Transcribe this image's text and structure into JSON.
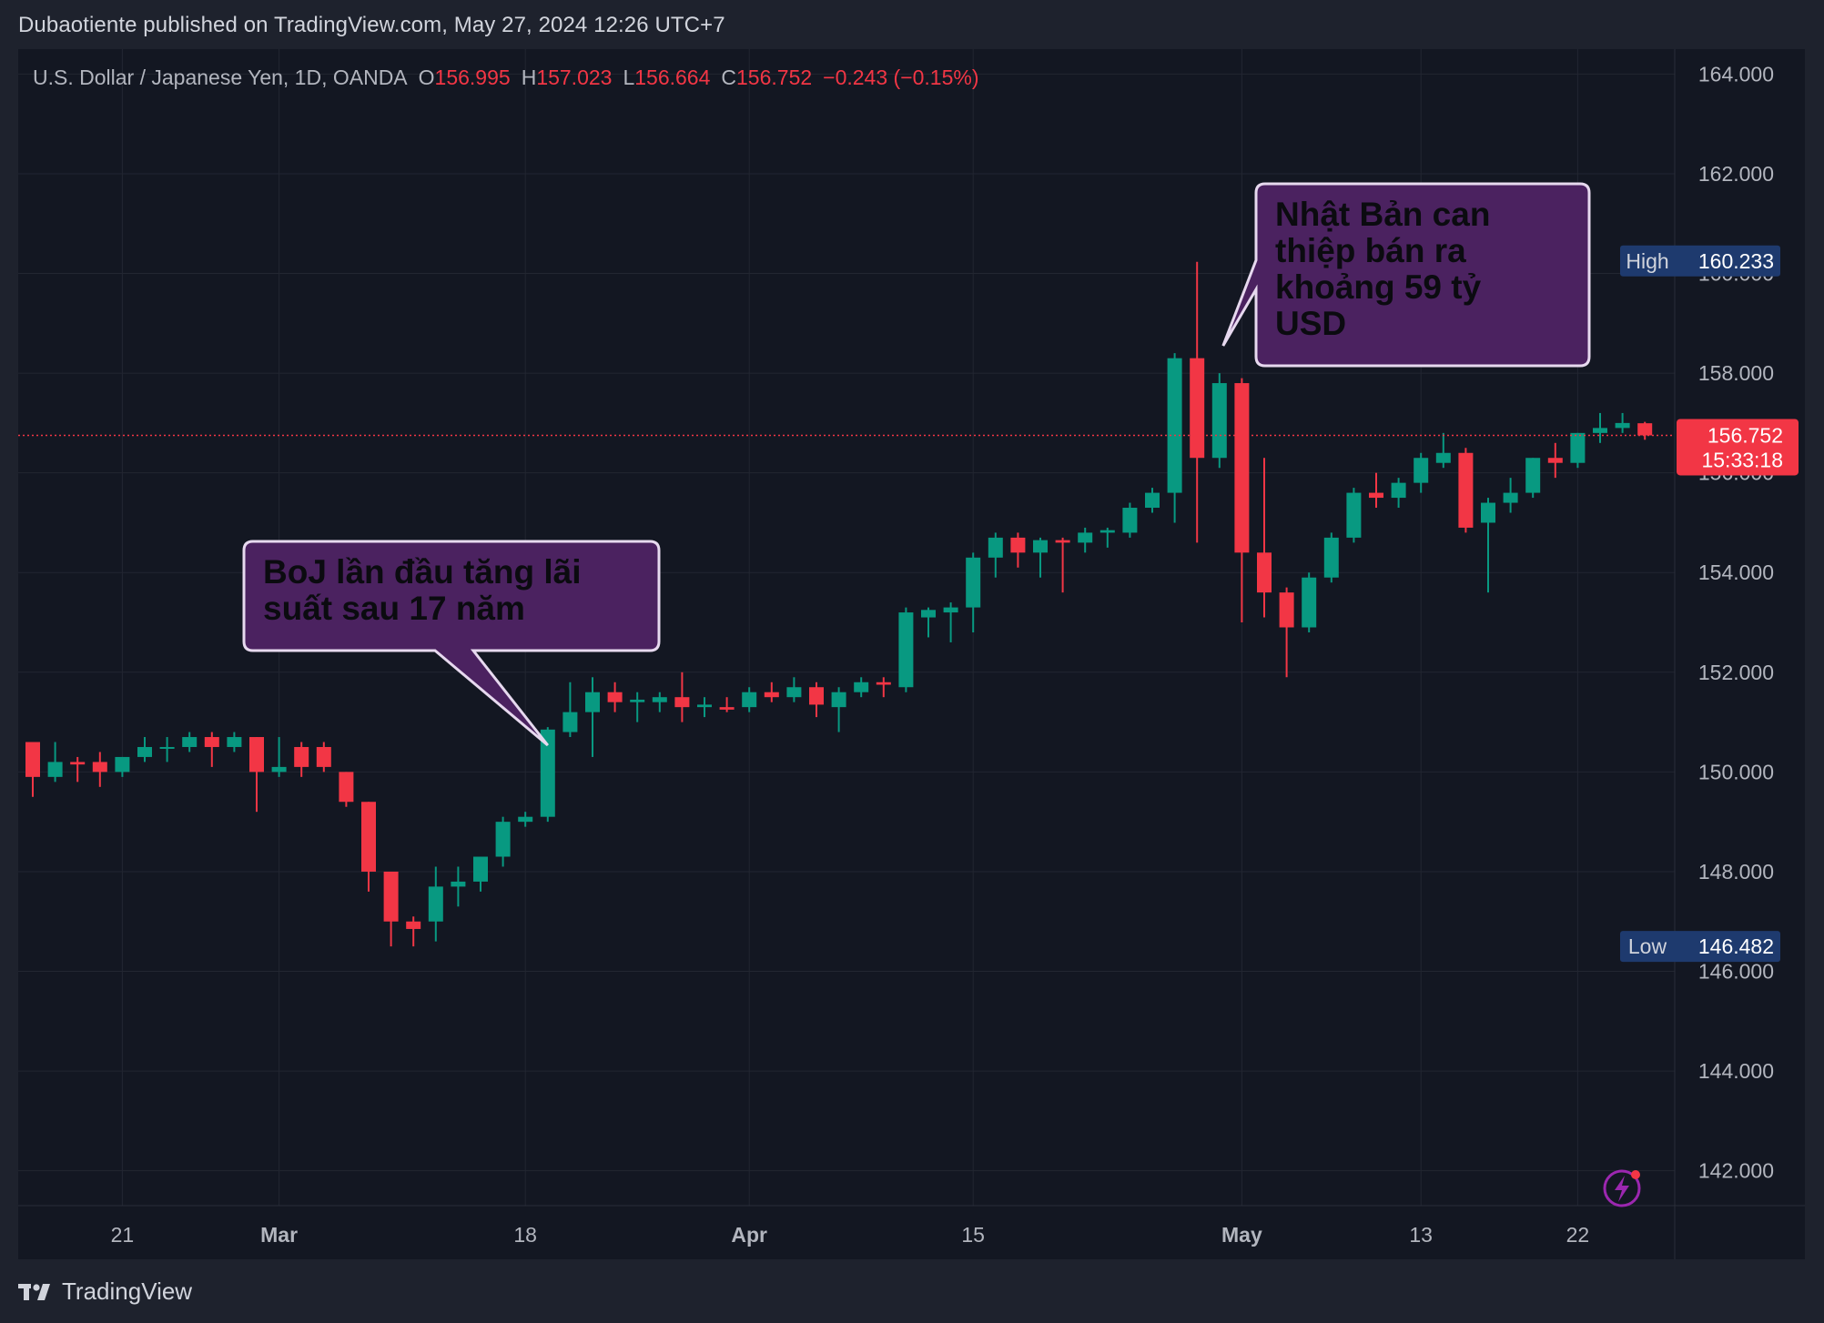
{
  "header": {
    "published": "Dubaotiente published on TradingView.com, May 27, 2024 12:26 UTC+7"
  },
  "legend": {
    "symbol": "U.S. Dollar / Japanese Yen, 1D, OANDA",
    "o_label": "O",
    "o_value": "156.995",
    "h_label": "H",
    "h_value": "157.023",
    "l_label": "L",
    "l_value": "156.664",
    "c_label": "C",
    "c_value": "156.752",
    "change": "−0.243 (−0.15%)"
  },
  "footer": {
    "brand": "TradingView"
  },
  "colors": {
    "up": "#089981",
    "down": "#f23645",
    "background": "#131722",
    "grid": "#222631",
    "axis_text": "#b2b5be",
    "callout_fill": "#4b2260",
    "callout_border": "#e7d9ef",
    "badge_blue": "#1e3a6e",
    "icon": "#9c27b0"
  },
  "icons": [
    "tradingview-logo-icon",
    "lightning-icon"
  ],
  "chart_data": {
    "type": "candlestick",
    "title": "U.S. Dollar / Japanese Yen, 1D, OANDA",
    "ylim": [
      141.3,
      164.5
    ],
    "y_ticks": [
      "142.000",
      "144.000",
      "146.000",
      "148.000",
      "150.000",
      "152.000",
      "154.000",
      "156.000",
      "158.000",
      "160.000",
      "162.000",
      "164.000"
    ],
    "x_ticks": [
      "21",
      "Mar",
      "18",
      "Apr",
      "15",
      "May",
      "13",
      "22"
    ],
    "x_tick_candle_index": [
      4,
      11,
      22,
      32,
      42,
      54,
      62,
      69
    ],
    "grid": true,
    "last_price": {
      "value": 156.752,
      "label": "156.752",
      "countdown": "15:33:18"
    },
    "high_marker": {
      "label": "High",
      "value": 160.233,
      "text": "160.233"
    },
    "low_marker": {
      "label": "Low",
      "value": 146.482,
      "text": "146.482"
    },
    "annotations": [
      {
        "text": "BoJ lần đầu tăng lãi suất sau 17 năm",
        "candle_index": 23
      },
      {
        "text": "Nhật Bản can thiệp bán ra khoảng 59 tỷ USD",
        "candle_index": 53
      }
    ],
    "candles": [
      {
        "o": 150.6,
        "h": 150.6,
        "l": 149.5,
        "c": 149.9
      },
      {
        "o": 149.9,
        "h": 150.6,
        "l": 149.8,
        "c": 150.2
      },
      {
        "o": 150.2,
        "h": 150.3,
        "l": 149.8,
        "c": 150.15
      },
      {
        "o": 150.2,
        "h": 150.4,
        "l": 149.7,
        "c": 150.0
      },
      {
        "o": 150.0,
        "h": 150.3,
        "l": 149.9,
        "c": 150.3
      },
      {
        "o": 150.3,
        "h": 150.7,
        "l": 150.2,
        "c": 150.5
      },
      {
        "o": 150.5,
        "h": 150.7,
        "l": 150.2,
        "c": 150.5
      },
      {
        "o": 150.5,
        "h": 150.8,
        "l": 150.4,
        "c": 150.7
      },
      {
        "o": 150.7,
        "h": 150.8,
        "l": 150.1,
        "c": 150.5
      },
      {
        "o": 150.5,
        "h": 150.8,
        "l": 150.4,
        "c": 150.7
      },
      {
        "o": 150.7,
        "h": 150.7,
        "l": 149.2,
        "c": 150.0
      },
      {
        "o": 150.0,
        "h": 150.7,
        "l": 149.9,
        "c": 150.1
      },
      {
        "o": 150.5,
        "h": 150.6,
        "l": 149.9,
        "c": 150.1
      },
      {
        "o": 150.5,
        "h": 150.6,
        "l": 150.0,
        "c": 150.1
      },
      {
        "o": 150.0,
        "h": 150.0,
        "l": 149.3,
        "c": 149.4
      },
      {
        "o": 149.4,
        "h": 149.4,
        "l": 147.6,
        "c": 148.0
      },
      {
        "o": 148.0,
        "h": 148.0,
        "l": 146.5,
        "c": 147.0
      },
      {
        "o": 147.0,
        "h": 147.1,
        "l": 146.5,
        "c": 146.85
      },
      {
        "o": 147.0,
        "h": 148.1,
        "l": 146.6,
        "c": 147.7
      },
      {
        "o": 147.7,
        "h": 148.1,
        "l": 147.3,
        "c": 147.8
      },
      {
        "o": 147.8,
        "h": 148.3,
        "l": 147.6,
        "c": 148.3
      },
      {
        "o": 148.3,
        "h": 149.1,
        "l": 148.1,
        "c": 149.0
      },
      {
        "o": 149.0,
        "h": 149.2,
        "l": 148.9,
        "c": 149.1
      },
      {
        "o": 149.1,
        "h": 150.9,
        "l": 149.0,
        "c": 150.85
      },
      {
        "o": 150.8,
        "h": 151.8,
        "l": 150.7,
        "c": 151.2
      },
      {
        "o": 151.2,
        "h": 151.9,
        "l": 150.3,
        "c": 151.6
      },
      {
        "o": 151.6,
        "h": 151.8,
        "l": 151.2,
        "c": 151.4
      },
      {
        "o": 151.4,
        "h": 151.6,
        "l": 151.0,
        "c": 151.45
      },
      {
        "o": 151.4,
        "h": 151.6,
        "l": 151.2,
        "c": 151.5
      },
      {
        "o": 151.5,
        "h": 152.0,
        "l": 151.0,
        "c": 151.3
      },
      {
        "o": 151.3,
        "h": 151.5,
        "l": 151.1,
        "c": 151.35
      },
      {
        "o": 151.3,
        "h": 151.5,
        "l": 151.2,
        "c": 151.25
      },
      {
        "o": 151.3,
        "h": 151.7,
        "l": 151.2,
        "c": 151.6
      },
      {
        "o": 151.6,
        "h": 151.8,
        "l": 151.4,
        "c": 151.5
      },
      {
        "o": 151.5,
        "h": 151.9,
        "l": 151.4,
        "c": 151.7
      },
      {
        "o": 151.7,
        "h": 151.8,
        "l": 151.1,
        "c": 151.35
      },
      {
        "o": 151.3,
        "h": 151.7,
        "l": 150.8,
        "c": 151.6
      },
      {
        "o": 151.6,
        "h": 151.9,
        "l": 151.5,
        "c": 151.8
      },
      {
        "o": 151.8,
        "h": 151.9,
        "l": 151.5,
        "c": 151.75
      },
      {
        "o": 151.7,
        "h": 153.3,
        "l": 151.6,
        "c": 153.2
      },
      {
        "o": 153.1,
        "h": 153.3,
        "l": 152.7,
        "c": 153.25
      },
      {
        "o": 153.2,
        "h": 153.4,
        "l": 152.6,
        "c": 153.3
      },
      {
        "o": 153.3,
        "h": 154.4,
        "l": 152.8,
        "c": 154.3
      },
      {
        "o": 154.3,
        "h": 154.8,
        "l": 153.9,
        "c": 154.7
      },
      {
        "o": 154.7,
        "h": 154.8,
        "l": 154.1,
        "c": 154.4
      },
      {
        "o": 154.4,
        "h": 154.7,
        "l": 153.9,
        "c": 154.65
      },
      {
        "o": 154.65,
        "h": 154.7,
        "l": 153.6,
        "c": 154.6
      },
      {
        "o": 154.6,
        "h": 154.9,
        "l": 154.4,
        "c": 154.8
      },
      {
        "o": 154.8,
        "h": 154.9,
        "l": 154.5,
        "c": 154.85
      },
      {
        "o": 154.8,
        "h": 155.4,
        "l": 154.7,
        "c": 155.3
      },
      {
        "o": 155.3,
        "h": 155.7,
        "l": 155.2,
        "c": 155.6
      },
      {
        "o": 155.6,
        "h": 158.4,
        "l": 155.0,
        "c": 158.3
      },
      {
        "o": 158.3,
        "h": 160.233,
        "l": 154.6,
        "c": 156.3
      },
      {
        "o": 156.3,
        "h": 158.0,
        "l": 156.1,
        "c": 157.8
      },
      {
        "o": 157.8,
        "h": 157.9,
        "l": 153.0,
        "c": 154.4
      },
      {
        "o": 154.4,
        "h": 156.3,
        "l": 153.1,
        "c": 153.6
      },
      {
        "o": 153.6,
        "h": 153.7,
        "l": 151.9,
        "c": 152.9
      },
      {
        "o": 152.9,
        "h": 154.0,
        "l": 152.8,
        "c": 153.9
      },
      {
        "o": 153.9,
        "h": 154.8,
        "l": 153.8,
        "c": 154.7
      },
      {
        "o": 154.7,
        "h": 155.7,
        "l": 154.6,
        "c": 155.6
      },
      {
        "o": 155.6,
        "h": 156.0,
        "l": 155.3,
        "c": 155.5
      },
      {
        "o": 155.5,
        "h": 155.9,
        "l": 155.3,
        "c": 155.8
      },
      {
        "o": 155.8,
        "h": 156.4,
        "l": 155.6,
        "c": 156.3
      },
      {
        "o": 156.2,
        "h": 156.8,
        "l": 156.1,
        "c": 156.4
      },
      {
        "o": 156.4,
        "h": 156.5,
        "l": 154.8,
        "c": 154.9
      },
      {
        "o": 155.0,
        "h": 155.5,
        "l": 153.6,
        "c": 155.4
      },
      {
        "o": 155.4,
        "h": 155.9,
        "l": 155.2,
        "c": 155.6
      },
      {
        "o": 155.6,
        "h": 156.3,
        "l": 155.5,
        "c": 156.3
      },
      {
        "o": 156.3,
        "h": 156.6,
        "l": 155.9,
        "c": 156.2
      },
      {
        "o": 156.2,
        "h": 156.8,
        "l": 156.1,
        "c": 156.8
      },
      {
        "o": 156.8,
        "h": 157.2,
        "l": 156.6,
        "c": 156.9
      },
      {
        "o": 156.9,
        "h": 157.2,
        "l": 156.8,
        "c": 157.0
      },
      {
        "o": 156.995,
        "h": 157.023,
        "l": 156.664,
        "c": 156.752
      }
    ]
  }
}
